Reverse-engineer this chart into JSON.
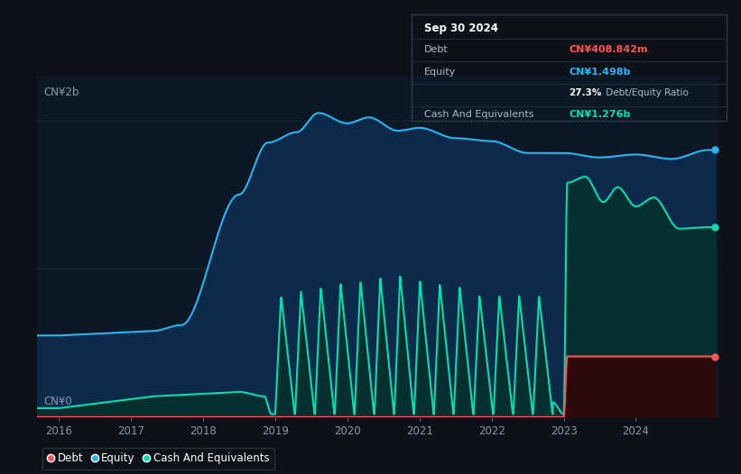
{
  "background_color": "#0e1117",
  "plot_bg_color": "#0d1826",
  "title": "Sep 30 2024",
  "ylabel_top": "CN¥2b",
  "ylabel_bottom": "CN¥0",
  "x_ticks": [
    2016,
    2017,
    2018,
    2019,
    2020,
    2021,
    2022,
    2023,
    2024
  ],
  "grid_color": "#1a2a3a",
  "equity_color": "#2ab5f0",
  "cash_color": "#00ddb0",
  "debt_color": "#ff5555",
  "equity_fill": "#0d2a4a",
  "cash_fill": "#063030",
  "debt_fill": "#2a0a0a",
  "tooltip_bg": "#060c10",
  "tooltip_border": "#2a3a4a",
  "tooltip": {
    "date": "Sep 30 2024",
    "debt_label": "Debt",
    "debt_value": "CN¥408.842m",
    "debt_value_color": "#ff5555",
    "equity_label": "Equity",
    "equity_value": "CN¥1.498b",
    "equity_value_color": "#2ab5f0",
    "ratio_bold": "27.3%",
    "ratio_label": " Debt/Equity Ratio",
    "cash_label": "Cash And Equivalents",
    "cash_value": "CN¥1.276b",
    "cash_value_color": "#00ddb0"
  },
  "legend": [
    {
      "label": "Debt",
      "color": "#ff5555"
    },
    {
      "label": "Equity",
      "color": "#2ab5f0"
    },
    {
      "label": "Cash And Equivalents",
      "color": "#00ddb0"
    }
  ]
}
